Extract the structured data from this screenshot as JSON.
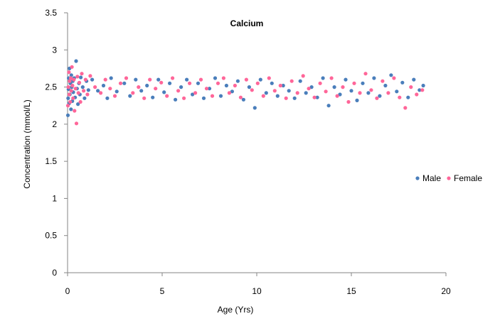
{
  "chart_data": {
    "type": "scatter",
    "title": "Calcium",
    "xlabel": "Age (Yrs)",
    "ylabel": "Concentration (mmol/L)",
    "xlim": [
      0,
      20
    ],
    "ylim": [
      0,
      3.5
    ],
    "x_ticks": [
      "0",
      "5",
      "10",
      "15",
      "20"
    ],
    "y_ticks": [
      "0",
      "0.5",
      "1",
      "1.5",
      "2",
      "2.5",
      "3",
      "3.5"
    ],
    "grid": false,
    "legend_position": "right",
    "series": [
      {
        "name": "Male",
        "color": "#4a7ebb",
        "points": [
          [
            0.02,
            2.12
          ],
          [
            0.03,
            2.35
          ],
          [
            0.05,
            2.47
          ],
          [
            0.06,
            2.62
          ],
          [
            0.08,
            2.28
          ],
          [
            0.1,
            2.75
          ],
          [
            0.12,
            2.4
          ],
          [
            0.15,
            2.55
          ],
          [
            0.18,
            2.2
          ],
          [
            0.2,
            2.66
          ],
          [
            0.22,
            2.5
          ],
          [
            0.25,
            2.31
          ],
          [
            0.28,
            2.58
          ],
          [
            0.3,
            2.43
          ],
          [
            0.35,
            2.62
          ],
          [
            0.4,
            2.36
          ],
          [
            0.45,
            2.85
          ],
          [
            0.5,
            2.48
          ],
          [
            0.55,
            2.27
          ],
          [
            0.6,
            2.55
          ],
          [
            0.65,
            2.4
          ],
          [
            0.7,
            2.63
          ],
          [
            0.8,
            2.5
          ],
          [
            0.9,
            2.35
          ],
          [
            1.0,
            2.58
          ],
          [
            1.1,
            2.46
          ],
          [
            1.3,
            2.6
          ],
          [
            1.6,
            2.45
          ],
          [
            1.9,
            2.52
          ],
          [
            2.1,
            2.35
          ],
          [
            2.3,
            2.62
          ],
          [
            2.6,
            2.44
          ],
          [
            3.0,
            2.55
          ],
          [
            3.3,
            2.38
          ],
          [
            3.6,
            2.6
          ],
          [
            3.9,
            2.45
          ],
          [
            4.2,
            2.52
          ],
          [
            4.5,
            2.36
          ],
          [
            4.8,
            2.6
          ],
          [
            5.1,
            2.43
          ],
          [
            5.4,
            2.55
          ],
          [
            5.7,
            2.33
          ],
          [
            6.0,
            2.5
          ],
          [
            6.3,
            2.6
          ],
          [
            6.6,
            2.4
          ],
          [
            6.9,
            2.55
          ],
          [
            7.2,
            2.35
          ],
          [
            7.5,
            2.48
          ],
          [
            7.8,
            2.62
          ],
          [
            8.1,
            2.38
          ],
          [
            8.4,
            2.52
          ],
          [
            8.7,
            2.44
          ],
          [
            9.0,
            2.58
          ],
          [
            9.3,
            2.33
          ],
          [
            9.6,
            2.5
          ],
          [
            9.9,
            2.22
          ],
          [
            10.2,
            2.6
          ],
          [
            10.5,
            2.42
          ],
          [
            10.8,
            2.55
          ],
          [
            11.1,
            2.38
          ],
          [
            11.4,
            2.52
          ],
          [
            11.7,
            2.45
          ],
          [
            12.0,
            2.35
          ],
          [
            12.3,
            2.58
          ],
          [
            12.6,
            2.42
          ],
          [
            12.9,
            2.5
          ],
          [
            13.2,
            2.36
          ],
          [
            13.5,
            2.62
          ],
          [
            13.8,
            2.25
          ],
          [
            14.1,
            2.5
          ],
          [
            14.4,
            2.4
          ],
          [
            14.7,
            2.6
          ],
          [
            15.0,
            2.45
          ],
          [
            15.3,
            2.32
          ],
          [
            15.6,
            2.55
          ],
          [
            15.9,
            2.42
          ],
          [
            16.2,
            2.62
          ],
          [
            16.5,
            2.38
          ],
          [
            16.8,
            2.52
          ],
          [
            17.1,
            2.66
          ],
          [
            17.4,
            2.44
          ],
          [
            17.7,
            2.56
          ],
          [
            18.0,
            2.36
          ],
          [
            18.3,
            2.6
          ],
          [
            18.6,
            2.46
          ],
          [
            18.8,
            2.52
          ]
        ]
      },
      {
        "name": "Female",
        "color": "#ff6699",
        "points": [
          [
            0.02,
            2.25
          ],
          [
            0.04,
            2.5
          ],
          [
            0.07,
            2.7
          ],
          [
            0.09,
            2.4
          ],
          [
            0.11,
            2.58
          ],
          [
            0.14,
            2.3
          ],
          [
            0.17,
            2.62
          ],
          [
            0.19,
            2.45
          ],
          [
            0.23,
            2.77
          ],
          [
            0.26,
            2.52
          ],
          [
            0.29,
            2.35
          ],
          [
            0.33,
            2.6
          ],
          [
            0.37,
            2.18
          ],
          [
            0.42,
            2.48
          ],
          [
            0.47,
            2.01
          ],
          [
            0.52,
            2.64
          ],
          [
            0.57,
            2.42
          ],
          [
            0.62,
            2.56
          ],
          [
            0.68,
            2.3
          ],
          [
            0.75,
            2.68
          ],
          [
            0.85,
            2.45
          ],
          [
            0.95,
            2.6
          ],
          [
            1.05,
            2.4
          ],
          [
            1.2,
            2.65
          ],
          [
            1.45,
            2.5
          ],
          [
            1.75,
            2.42
          ],
          [
            2.0,
            2.6
          ],
          [
            2.25,
            2.48
          ],
          [
            2.5,
            2.38
          ],
          [
            2.8,
            2.55
          ],
          [
            3.1,
            2.62
          ],
          [
            3.45,
            2.42
          ],
          [
            3.75,
            2.5
          ],
          [
            4.05,
            2.35
          ],
          [
            4.35,
            2.6
          ],
          [
            4.65,
            2.48
          ],
          [
            4.95,
            2.56
          ],
          [
            5.25,
            2.38
          ],
          [
            5.55,
            2.62
          ],
          [
            5.85,
            2.45
          ],
          [
            6.15,
            2.35
          ],
          [
            6.45,
            2.55
          ],
          [
            6.75,
            2.42
          ],
          [
            7.05,
            2.6
          ],
          [
            7.35,
            2.48
          ],
          [
            7.65,
            2.38
          ],
          [
            7.95,
            2.55
          ],
          [
            8.25,
            2.62
          ],
          [
            8.55,
            2.42
          ],
          [
            8.85,
            2.52
          ],
          [
            9.15,
            2.36
          ],
          [
            9.45,
            2.6
          ],
          [
            9.75,
            2.46
          ],
          [
            10.05,
            2.55
          ],
          [
            10.35,
            2.38
          ],
          [
            10.65,
            2.62
          ],
          [
            10.95,
            2.45
          ],
          [
            11.25,
            2.52
          ],
          [
            11.55,
            2.35
          ],
          [
            11.85,
            2.58
          ],
          [
            12.15,
            2.42
          ],
          [
            12.45,
            2.65
          ],
          [
            12.75,
            2.48
          ],
          [
            13.05,
            2.36
          ],
          [
            13.35,
            2.55
          ],
          [
            13.65,
            2.44
          ],
          [
            13.95,
            2.62
          ],
          [
            14.25,
            2.38
          ],
          [
            14.55,
            2.5
          ],
          [
            14.85,
            2.3
          ],
          [
            15.15,
            2.55
          ],
          [
            15.45,
            2.42
          ],
          [
            15.75,
            2.68
          ],
          [
            16.05,
            2.46
          ],
          [
            16.35,
            2.35
          ],
          [
            16.65,
            2.58
          ],
          [
            16.95,
            2.42
          ],
          [
            17.25,
            2.62
          ],
          [
            17.55,
            2.36
          ],
          [
            17.85,
            2.22
          ],
          [
            18.15,
            2.5
          ],
          [
            18.45,
            2.4
          ],
          [
            18.75,
            2.46
          ]
        ]
      }
    ]
  }
}
